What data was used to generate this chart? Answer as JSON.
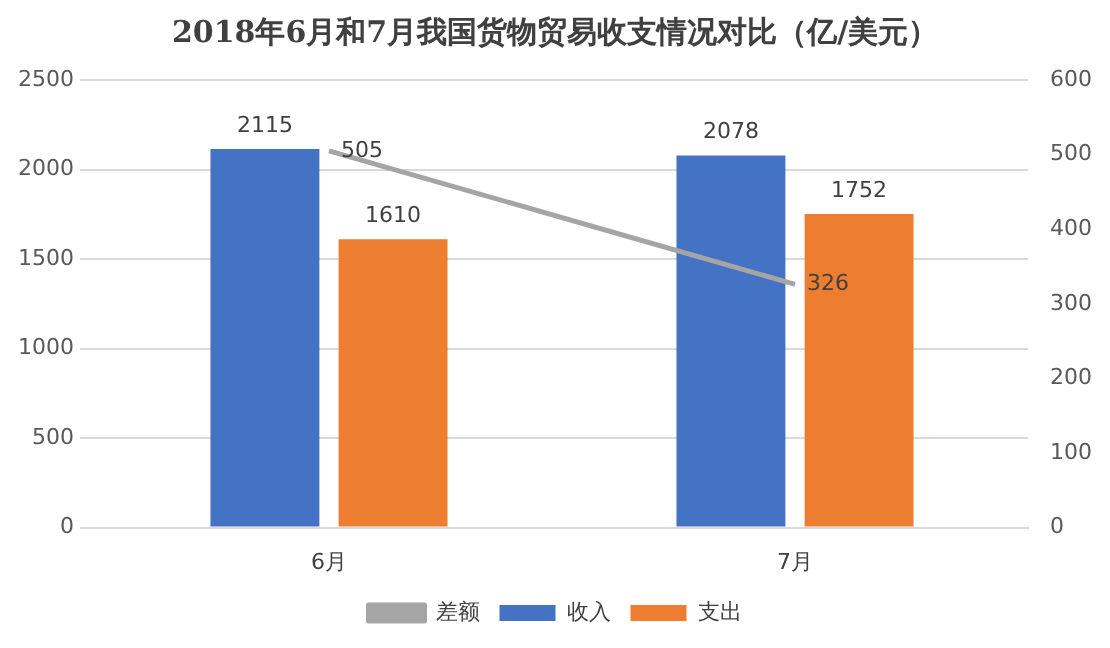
{
  "chart_data": {
    "type": "bar",
    "title": "2018年6月和7月我国货物贸易收支情况对比（亿/美元）",
    "categories": [
      "6月",
      "7月"
    ],
    "series": [
      {
        "name": "收入",
        "color": "#4472c4",
        "values": [
          2115,
          2078
        ]
      },
      {
        "name": "支出",
        "color": "#ed7d31",
        "values": [
          1610,
          1752
        ]
      },
      {
        "name": "差额",
        "color": "#a5a5a5",
        "values": [
          505,
          326
        ],
        "type": "line",
        "axis": "y2"
      }
    ],
    "ylim": [
      0,
      2500
    ],
    "yticks": [
      0,
      500,
      1000,
      1500,
      2000,
      2500
    ],
    "y2lim": [
      0,
      600
    ],
    "y2ticks": [
      0,
      100,
      200,
      300,
      400,
      500,
      600
    ],
    "grid": "y",
    "legend": "bottom",
    "data_labels": true,
    "marker": "none"
  }
}
